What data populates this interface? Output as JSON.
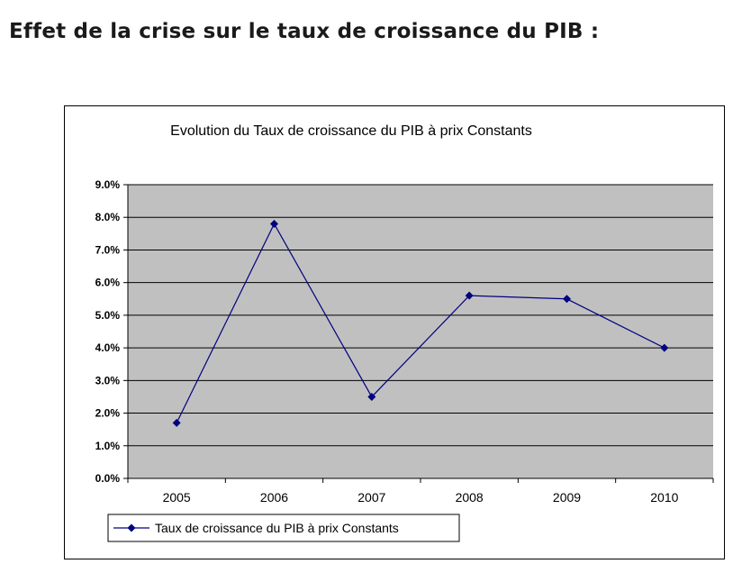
{
  "page": {
    "heading": "Effet de la crise sur le taux de croissance du PIB :"
  },
  "chart_data": {
    "type": "line",
    "title": "Evolution du Taux de croissance du PIB à prix Constants",
    "xlabel": "",
    "ylabel": "",
    "categories": [
      "2005",
      "2006",
      "2007",
      "2008",
      "2009",
      "2010"
    ],
    "series": [
      {
        "name": "Taux de croissance du PIB à prix Constants",
        "values": [
          1.7,
          7.8,
          2.5,
          5.6,
          5.5,
          4.0
        ],
        "color": "#000080",
        "marker": "diamond"
      }
    ],
    "yticks": [
      "0.0%",
      "1.0%",
      "2.0%",
      "3.0%",
      "4.0%",
      "5.0%",
      "6.0%",
      "7.0%",
      "8.0%",
      "9.0%"
    ],
    "ylim": [
      0,
      9
    ],
    "y_unit": "%",
    "grid": true,
    "plot_background": "#c0c0c0",
    "gridline_color": "#000000",
    "legend_position": "bottom-left"
  }
}
